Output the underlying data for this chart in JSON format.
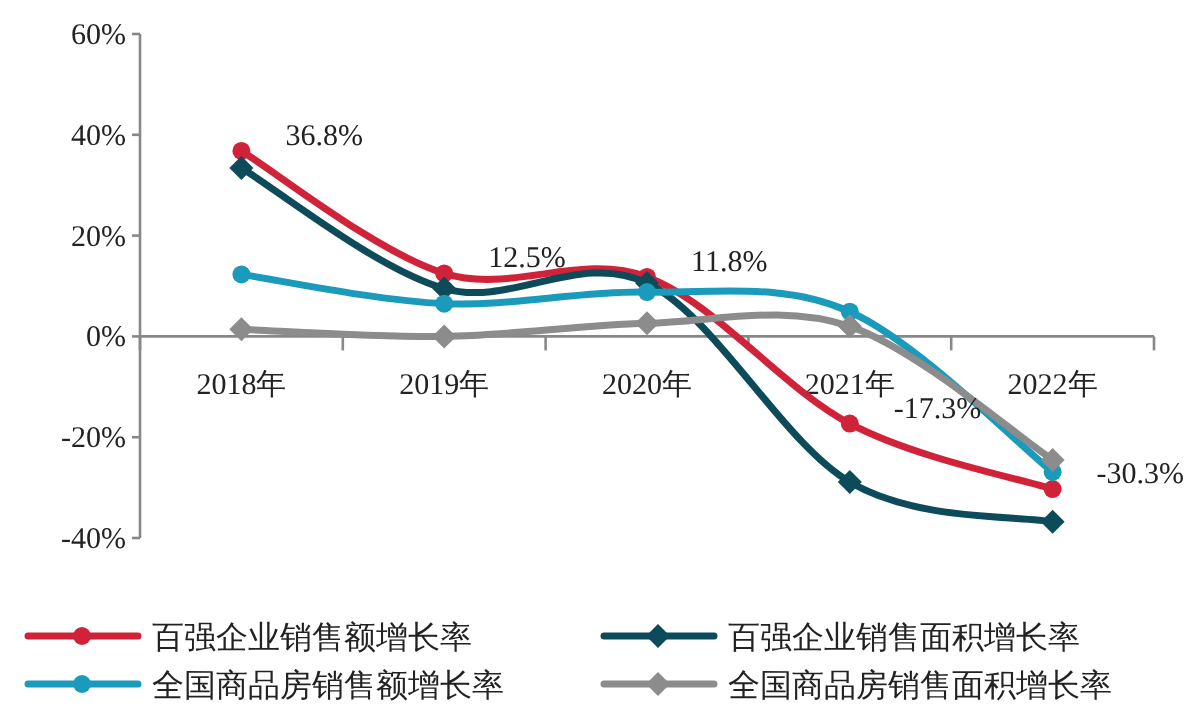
{
  "chart_data": {
    "type": "line",
    "categories": [
      "2018年",
      "2019年",
      "2020年",
      "2021年",
      "2022年"
    ],
    "ylim": [
      -40,
      60
    ],
    "yticks": [
      {
        "value": -40,
        "label": "-40%"
      },
      {
        "value": -20,
        "label": "-20%"
      },
      {
        "value": 0,
        "label": "0%"
      },
      {
        "value": 20,
        "label": "20%"
      },
      {
        "value": 40,
        "label": "40%"
      },
      {
        "value": 60,
        "label": "60%"
      }
    ],
    "series": [
      {
        "name": "百强企业销售额增长率",
        "color": "#d0233a",
        "values": [
          36.8,
          12.5,
          11.8,
          -17.3,
          -30.3
        ],
        "value_labels": [
          "36.8%",
          "12.5%",
          "11.8%",
          "-17.3%",
          "-30.3%"
        ],
        "marker": "circle"
      },
      {
        "name": "百强企业销售面积增长率",
        "color": "#0d4b5a",
        "values": [
          33.4,
          9.5,
          10.6,
          -28.9,
          -36.8
        ],
        "marker": "diamond"
      },
      {
        "name": "全国商品房销售额增长率",
        "color": "#1a9bbb",
        "values": [
          12.3,
          6.5,
          8.8,
          4.9,
          -26.9
        ],
        "marker": "circle"
      },
      {
        "name": "全国商品房销售面积增长率",
        "color": "#8c8c8c",
        "values": [
          1.4,
          0,
          2.6,
          2.0,
          -24.5
        ],
        "marker": "diamond"
      }
    ],
    "legend": "bottom",
    "grid": false
  }
}
